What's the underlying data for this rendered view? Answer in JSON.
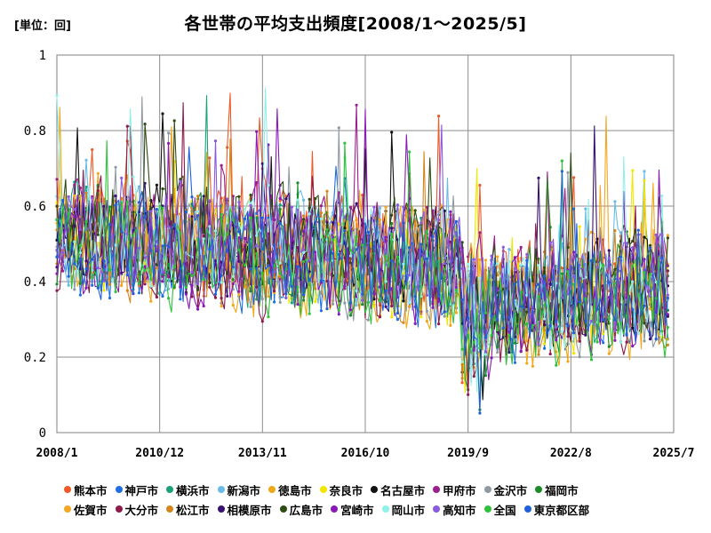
{
  "chart_data": {
    "type": "line",
    "title": "各世帯の平均支出頻度[2008/1～2025/5]",
    "unit_label": "[単位：回]",
    "x_range": [
      "2008/1",
      "2025/7"
    ],
    "x_ticks": [
      "2008/1",
      "2010/12",
      "2013/11",
      "2016/10",
      "2019/9",
      "2022/8",
      "2025/7"
    ],
    "y_range": [
      0,
      1
    ],
    "y_ticks": [
      "0",
      "0.2",
      "0.4",
      "0.6",
      "0.8",
      "1"
    ],
    "grid": true,
    "legend_position": "bottom",
    "series": [
      {
        "name": "熊本市",
        "color": "#f05a28"
      },
      {
        "name": "神戸市",
        "color": "#1f6fe0"
      },
      {
        "name": "横浜市",
        "color": "#1aa37a"
      },
      {
        "name": "新潟市",
        "color": "#6bbbe8"
      },
      {
        "name": "徳島市",
        "color": "#f0a818"
      },
      {
        "name": "奈良市",
        "color": "#f2e600"
      },
      {
        "name": "名古屋市",
        "color": "#111111"
      },
      {
        "name": "甲府市",
        "color": "#9b1f8e"
      },
      {
        "name": "金沢市",
        "color": "#8f9aa3"
      },
      {
        "name": "福岡市",
        "color": "#1c8c2a"
      },
      {
        "name": "佐賀市",
        "color": "#f5a623"
      },
      {
        "name": "大分市",
        "color": "#8c1a4a"
      },
      {
        "name": "松江市",
        "color": "#d4861c"
      },
      {
        "name": "相模原市",
        "color": "#3a1070"
      },
      {
        "name": "広島市",
        "color": "#2e4d14"
      },
      {
        "name": "宮崎市",
        "color": "#8a1ab8"
      },
      {
        "name": "岡山市",
        "color": "#90f0ea"
      },
      {
        "name": "高知市",
        "color": "#8a5ae0"
      },
      {
        "name": "全国",
        "color": "#2ec23a"
      },
      {
        "name": "東京都区部",
        "color": "#2060d8"
      }
    ]
  }
}
